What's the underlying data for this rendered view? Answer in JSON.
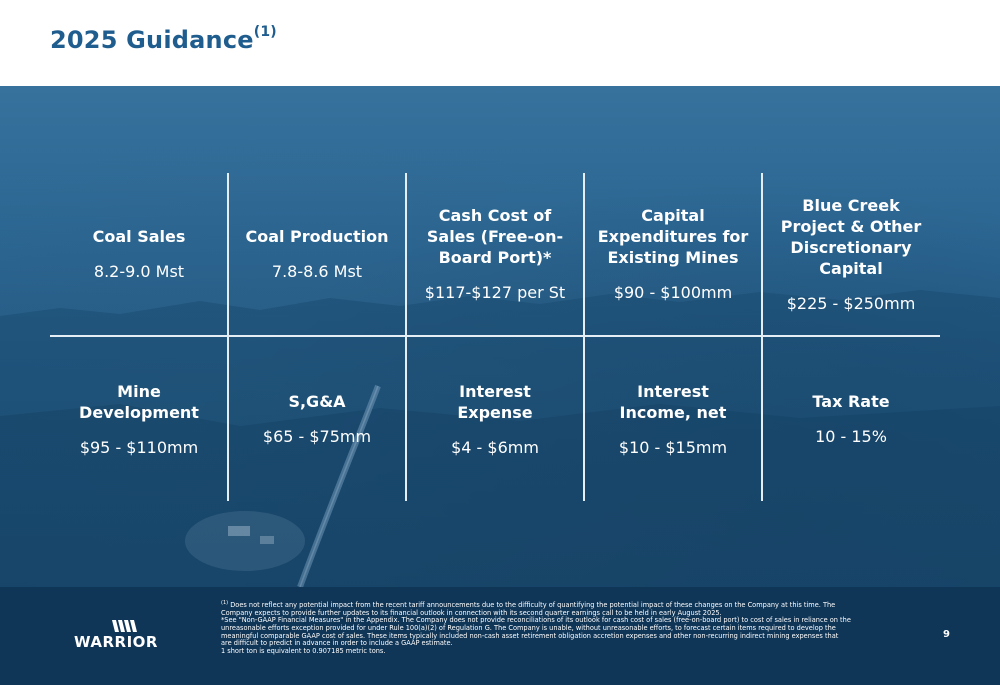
{
  "slide": {
    "title": "2025 Guidance",
    "title_footnote": "(1)",
    "page_number": "9"
  },
  "guidance": [
    {
      "label": "Coal Sales",
      "value": "8.2-9.0 Mst"
    },
    {
      "label": "Coal Production",
      "value": "7.8-8.6 Mst"
    },
    {
      "label": "Cash Cost of Sales (Free-on-Board Port)*",
      "value": "$117-$127 per St"
    },
    {
      "label": "Capital Expenditures for Existing Mines",
      "value": "$90 - $100mm"
    },
    {
      "label": "Blue Creek Project & Other Discretionary Capital",
      "value": "$225 - $250mm"
    },
    {
      "label": "Mine Development",
      "value": "$95 - $110mm"
    },
    {
      "label": "S,G&A",
      "value": "$65 - $75mm"
    },
    {
      "label": "Interest Expense",
      "value": "$4 - $6mm"
    },
    {
      "label": "Interest Income, net",
      "value": "$10 - $15mm"
    },
    {
      "label": "Tax Rate",
      "value": "10 - 15%"
    }
  ],
  "footer": {
    "logo_text": "WARRIOR",
    "note_1_marker": "(1)",
    "note_1": "Does not reflect any potential impact from the recent tariff announcements due to the difficulty of quantifying the potential impact of these changes on the Company at this time. The Company expects to provide further updates to its financial outlook in connection with its second quarter earnings call to be held in early August 2025.",
    "note_2": "*See \"Non-GAAP Financial Measures\" in the Appendix. The Company does not provide reconciliations of its outlook for cash cost of sales (free-on-board port) to cost of sales in reliance on the unreasonable efforts exception provided for under Rule 100(a)(2) of Regulation G. The Company is unable, without unreasonable efforts, to forecast certain items required to develop the meaningful comparable GAAP cost of sales. These items typically included non-cash asset retirement obligation accretion expenses and other non-recurring indirect mining expenses that are difficult to predict in advance in order to include a GAAP estimate.",
    "note_3": "1 short ton is equivalent to 0.907185 metric tons."
  },
  "colors": {
    "title": "#1f5d8e",
    "footer_bg": "#0f3557",
    "grid_lines": "#e6eef5"
  }
}
